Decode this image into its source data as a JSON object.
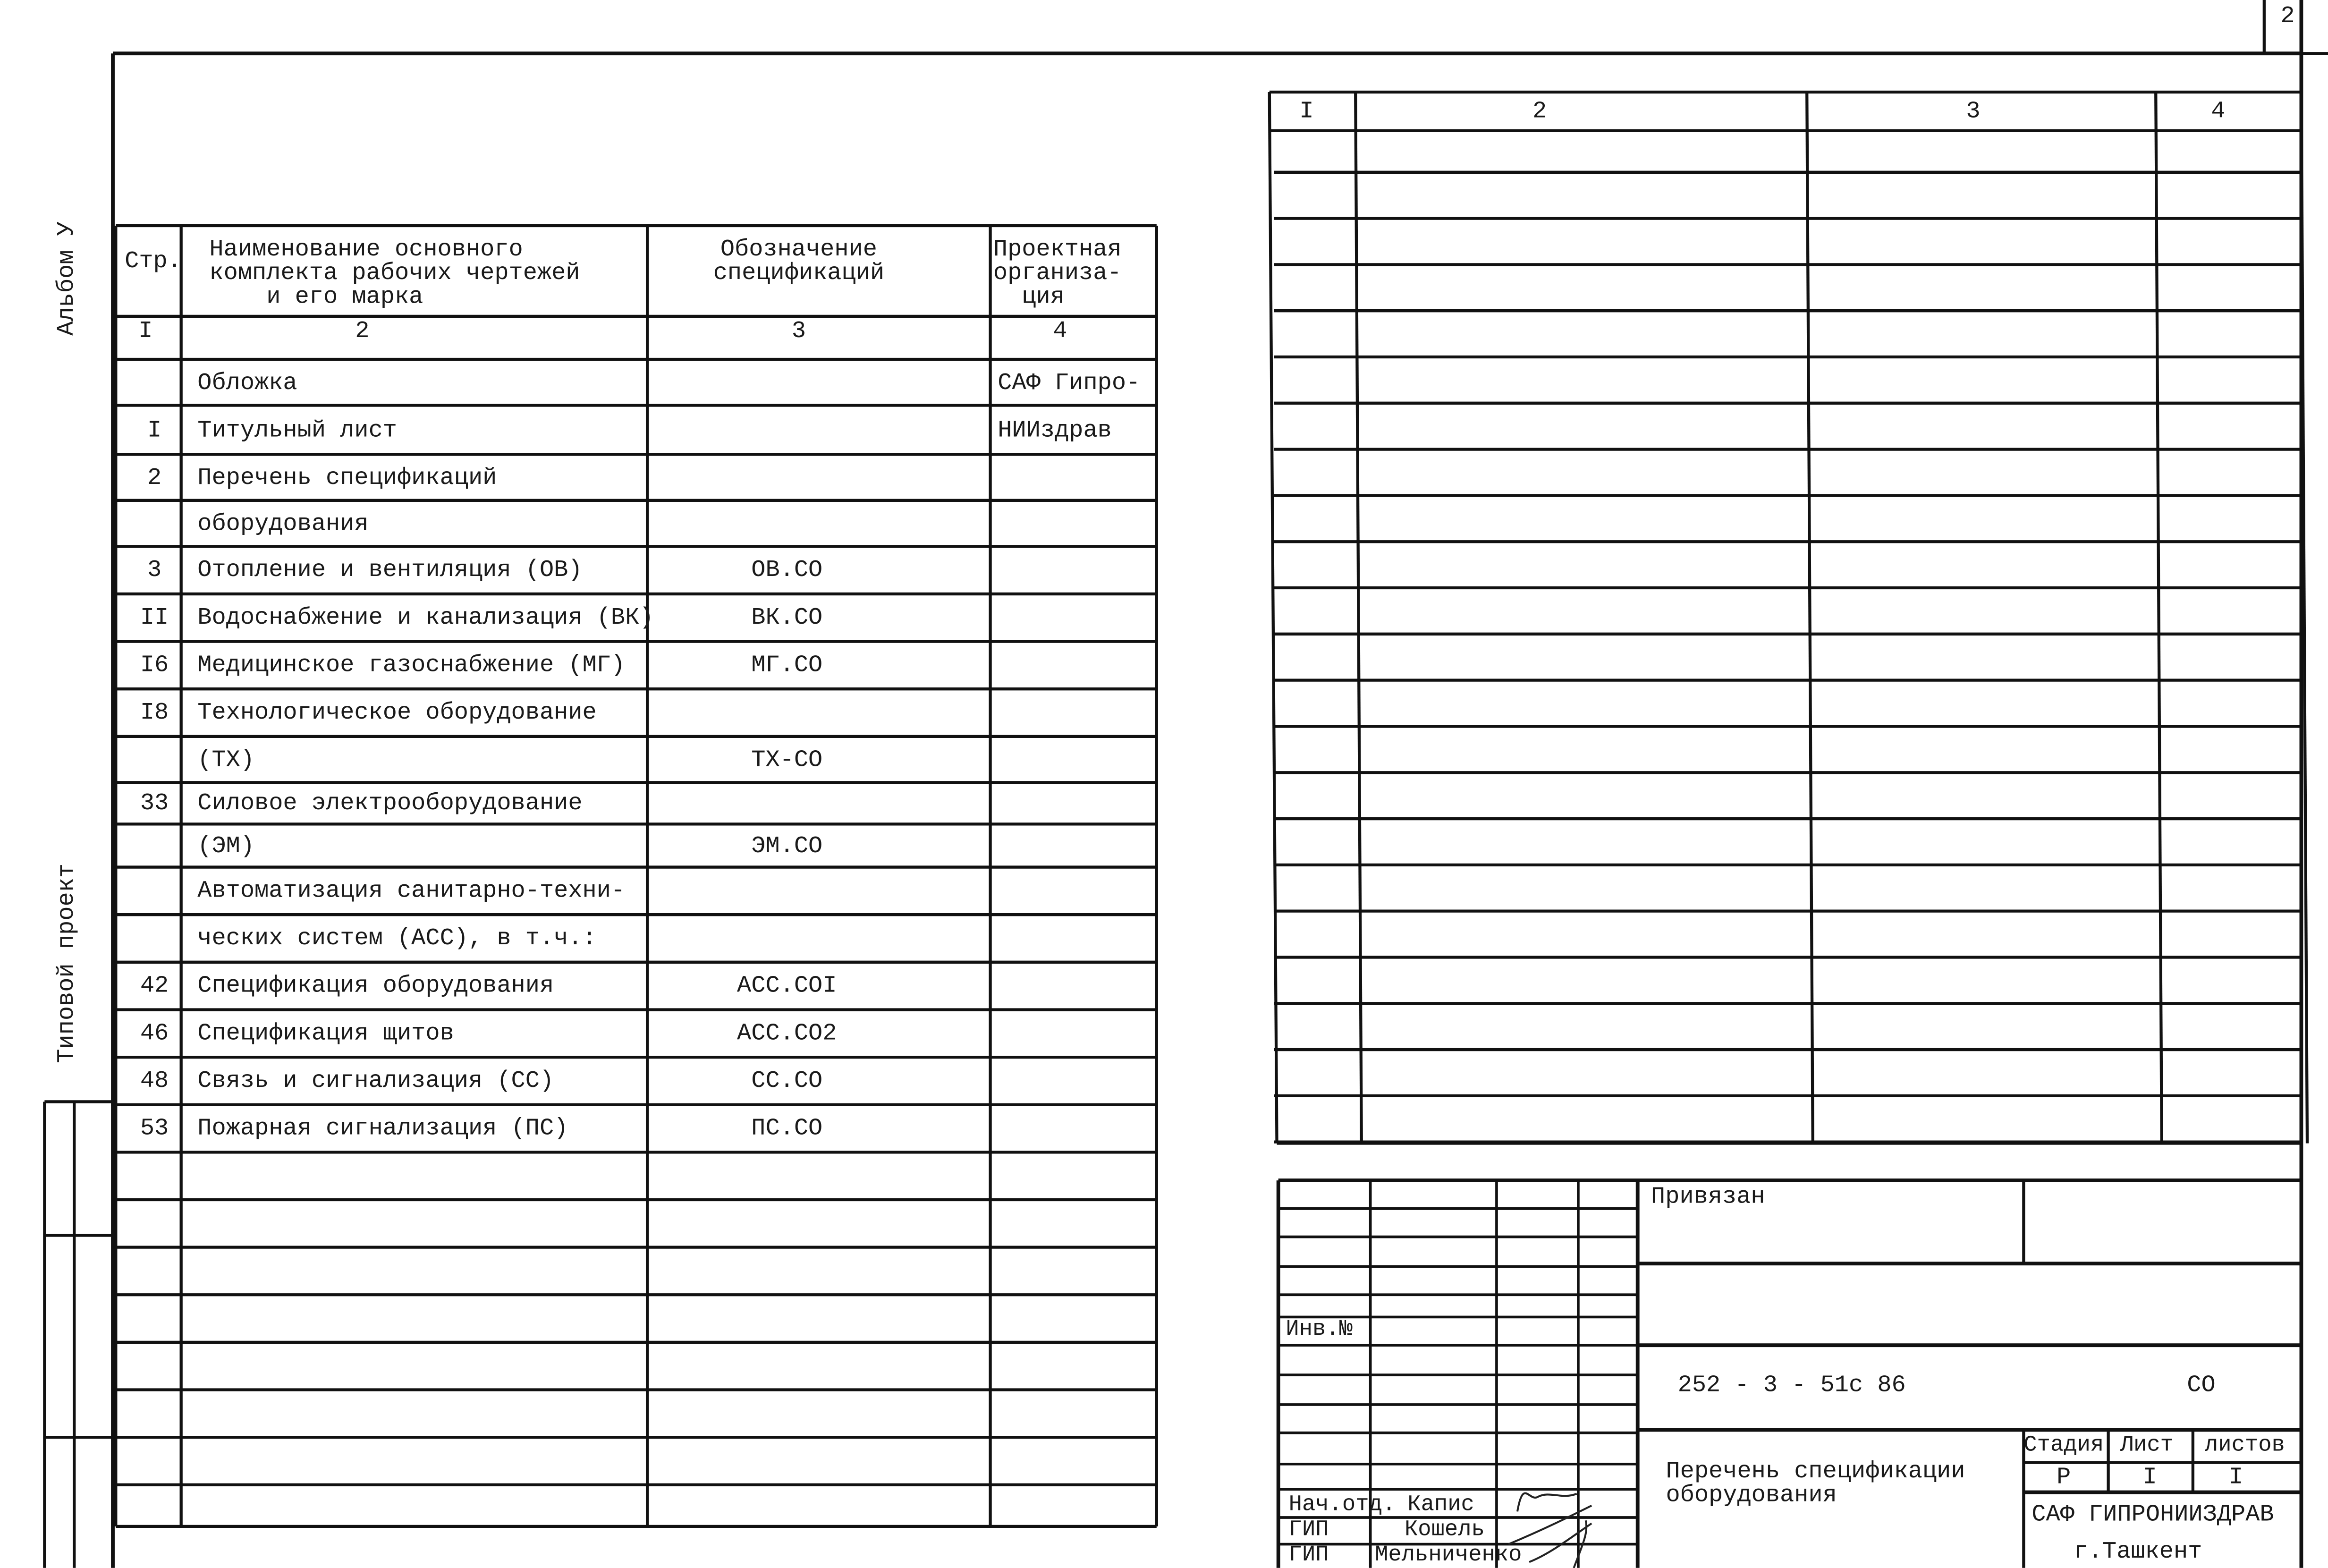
{
  "sheet_number": "2",
  "margin": {
    "album": "Альбом У",
    "project_type": "Типовой проект"
  },
  "left_table": {
    "headers": [
      "Стр.",
      "Наименование основного\nкомплекта рабочих чертежей\n    и его марка",
      "Обозначение\nспецификаций",
      "Проектная\nорганиза-\n  ция"
    ],
    "column_numbers": [
      "I",
      "2",
      "3",
      "4"
    ],
    "rows": [
      [
        "",
        "Обложка",
        "",
        "САФ Гипро-"
      ],
      [
        "I",
        "Титульный лист",
        "",
        "НИИздрав"
      ],
      [
        "2",
        "Перечень спецификаций",
        "",
        ""
      ],
      [
        "",
        "оборудования",
        "",
        ""
      ],
      [
        "3",
        "Отопление и вентиляция (ОВ)",
        "ОВ.СО",
        ""
      ],
      [
        "II",
        "Водоснабжение и канализация (ВК)",
        "ВК.СО",
        ""
      ],
      [
        "I6",
        "Медицинское газоснабжение (МГ)",
        "МГ.СО",
        ""
      ],
      [
        "I8",
        "Технологическое оборудование",
        "",
        ""
      ],
      [
        "",
        "(ТХ)",
        "ТХ-СО",
        ""
      ],
      [
        "33",
        "Силовое электрооборудование",
        "",
        ""
      ],
      [
        "",
        "(ЭМ)",
        "ЭМ.СО",
        ""
      ],
      [
        "",
        "Автоматизация санитарно-техни-",
        "",
        ""
      ],
      [
        "",
        "ческих систем (АСС), в т.ч.:",
        "",
        ""
      ],
      [
        "42",
        "Спецификация оборудования",
        "АСС.СОI",
        ""
      ],
      [
        "46",
        "Спецификация щитов",
        "АСС.СО2",
        ""
      ],
      [
        "48",
        "Связь и сигнализация (СС)",
        "СС.СО",
        ""
      ],
      [
        "53",
        "Пожарная сигнализация (ПС)",
        "ПС.СО",
        ""
      ]
    ]
  },
  "right_table": {
    "column_numbers": [
      "I",
      "2",
      "3",
      "4"
    ]
  },
  "title_block": {
    "bound_label": "Привязан",
    "inv_label": "Инв.№",
    "document_code": "252 - 3 - 51с 86",
    "document_mark": "СО",
    "title": "Перечень спецификации\nоборудования",
    "stage_header": "Стадия",
    "sheet_header": "Лист",
    "sheets_header": "листов",
    "stage_value": "Р",
    "sheet_value": "I",
    "sheets_value": "I",
    "organization": "САФ ГИПРОНИИЗДРАВ",
    "city": "г.Ташкент",
    "signatures": [
      {
        "role": "Нач.отд.",
        "name": "Капис"
      },
      {
        "role": "ГИП",
        "name": "Кошель"
      },
      {
        "role": "ГИП",
        "name": "Мельниченко"
      }
    ]
  }
}
